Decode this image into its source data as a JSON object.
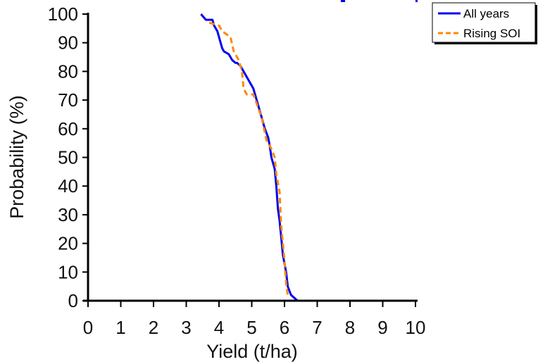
{
  "chart_data": {
    "type": "line",
    "title": "",
    "xlabel": "Yield (t/ha)",
    "ylabel": "Probability (%)",
    "xlim": [
      0,
      10
    ],
    "ylim": [
      0,
      100
    ],
    "xticks": [
      0,
      1,
      2,
      3,
      4,
      5,
      6,
      7,
      8,
      9,
      10
    ],
    "yticks": [
      0,
      10,
      20,
      30,
      40,
      50,
      60,
      70,
      80,
      90,
      100
    ],
    "grid": false,
    "legend": "top-right",
    "series": [
      {
        "name": "All years",
        "color": "#0000ee",
        "style": "solid",
        "x": [
          3.45,
          3.6,
          3.8,
          3.85,
          3.95,
          4.0,
          4.05,
          4.1,
          4.15,
          4.3,
          4.4,
          4.5,
          4.55,
          4.65,
          4.75,
          4.9,
          5.05,
          5.15,
          5.3,
          5.4,
          5.5,
          5.55,
          5.6,
          5.7,
          5.75,
          5.8,
          5.85,
          5.9,
          5.95,
          6.05,
          6.1,
          6.2,
          6.4
        ],
        "y": [
          100,
          98,
          98,
          96,
          94,
          92,
          90,
          88,
          87,
          86,
          84,
          83,
          83,
          82,
          80,
          77,
          74,
          70,
          64,
          60,
          57,
          54,
          50,
          46,
          40,
          32,
          28,
          22,
          16,
          10,
          5,
          2,
          0
        ]
      },
      {
        "name": "Rising SOI",
        "color": "#ff8800",
        "style": "dashed",
        "x": [
          3.7,
          4.0,
          4.1,
          4.35,
          4.45,
          4.6,
          4.7,
          4.75,
          4.85,
          5.05,
          5.3,
          5.45,
          5.6,
          5.7,
          5.75,
          5.85,
          5.9,
          6.0,
          6.05,
          6.1
        ],
        "y": [
          97,
          96,
          94,
          92,
          87,
          84,
          80,
          74,
          72,
          72,
          64,
          56,
          53,
          50,
          44,
          38,
          26,
          14,
          6,
          2
        ]
      }
    ]
  }
}
